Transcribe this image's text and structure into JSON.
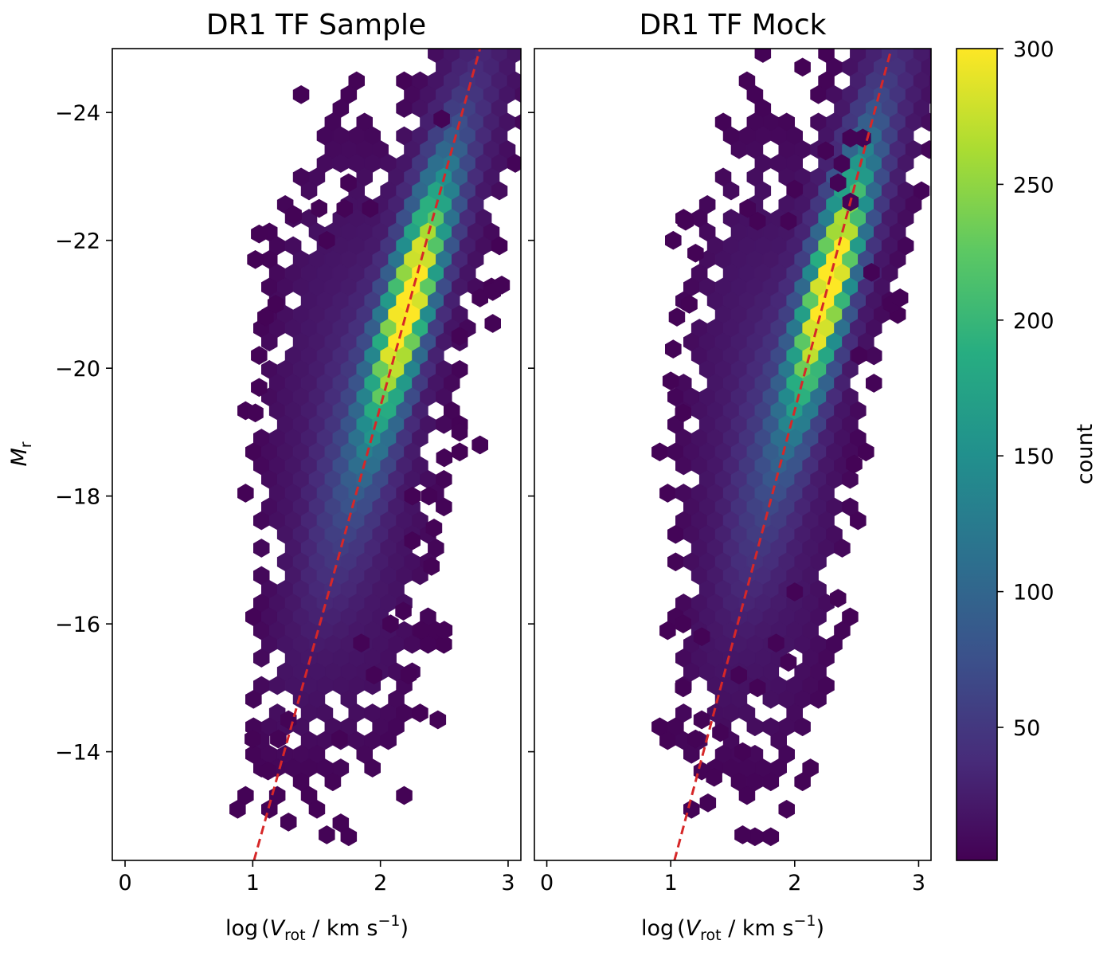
{
  "chart_data": [
    {
      "type": "hexbin",
      "title": "DR1 TF Sample",
      "xlabel_main": "log",
      "xlabel_var": "V",
      "xlabel_sub": "rot",
      "xlabel_unit": " / km s",
      "xlabel_exp": "−1",
      "ylabel_main": "M",
      "ylabel_sub": "r",
      "xlim": [
        -0.1,
        3.1
      ],
      "ylim": [
        -12.3,
        -25.0
      ],
      "xticks": [
        0,
        1,
        2,
        3
      ],
      "yticks": [
        -24,
        -22,
        -20,
        -18,
        -16,
        -14
      ],
      "xtick_labels": [
        "0",
        "1",
        "2",
        "3"
      ],
      "ytick_labels": [
        "−24",
        "−22",
        "−20",
        "−18",
        "−16",
        "−14"
      ],
      "fit_line": {
        "points": [
          [
            1.01,
            -12.3
          ],
          [
            2.78,
            -25.0
          ]
        ],
        "color": "#d62728",
        "style": "dashed"
      },
      "density_ridge": {
        "peak": [
          2.22,
          -21.0
        ],
        "slope": 5.4,
        "peak_count": 300
      },
      "outliers": [
        [
          2.48,
          -23.9
        ],
        [
          1.75,
          -22.9
        ],
        [
          1.32,
          -22.4
        ],
        [
          1.52,
          -22.5
        ],
        [
          1.72,
          -22.5
        ],
        [
          1.92,
          -22.5
        ],
        [
          1.05,
          -22.1
        ],
        [
          1.58,
          -22.0
        ],
        [
          1.02,
          -21.7
        ],
        [
          2.78,
          -21.1
        ],
        [
          2.88,
          -21.2
        ],
        [
          2.95,
          -21.3
        ],
        [
          2.88,
          -20.7
        ],
        [
          2.62,
          -20.5
        ],
        [
          1.1,
          -20.8
        ],
        [
          1.18,
          -21.0
        ],
        [
          1.05,
          -20.2
        ],
        [
          1.05,
          -19.7
        ],
        [
          1.02,
          -19.3
        ],
        [
          2.62,
          -19.0
        ],
        [
          2.78,
          -18.8
        ],
        [
          2.5,
          -18.6
        ],
        [
          2.38,
          -18.0
        ],
        [
          2.25,
          -18.0
        ],
        [
          2.42,
          -17.5
        ],
        [
          2.25,
          -17.3
        ],
        [
          2.4,
          -16.9
        ],
        [
          2.18,
          -16.2
        ],
        [
          1.85,
          -15.7
        ],
        [
          2.08,
          -16.0
        ],
        [
          2.32,
          -15.9
        ],
        [
          2.5,
          -15.9
        ],
        [
          2.22,
          -15.2
        ],
        [
          1.95,
          -15.2
        ],
        [
          2.45,
          -14.5
        ],
        [
          1.28,
          -14.5
        ],
        [
          1.68,
          -14.2
        ],
        [
          1.0,
          -14.2
        ],
        [
          1.12,
          -13.7
        ],
        [
          1.28,
          -12.9
        ],
        [
          1.58,
          -12.7
        ],
        [
          1.2,
          -14.2
        ]
      ]
    },
    {
      "type": "hexbin",
      "title": "DR1 TF Mock",
      "xlabel_main": "log",
      "xlabel_var": "V",
      "xlabel_sub": "rot",
      "xlabel_unit": " / km s",
      "xlabel_exp": "−1",
      "xlim": [
        -0.1,
        3.1
      ],
      "ylim": [
        -12.3,
        -25.0
      ],
      "xticks": [
        0,
        1,
        2,
        3
      ],
      "xtick_labels": [
        "0",
        "1",
        "2",
        "3"
      ],
      "fit_line": {
        "points": [
          [
            1.03,
            -12.3
          ],
          [
            2.78,
            -25.0
          ]
        ],
        "color": "#d62728",
        "style": "dashed"
      },
      "density_ridge": {
        "peak": [
          2.28,
          -21.3
        ],
        "slope": 5.4,
        "peak_count": 300
      },
      "outliers": [
        [
          2.55,
          -23.6
        ],
        [
          2.45,
          -23.6
        ],
        [
          2.25,
          -23.4
        ],
        [
          2.38,
          -23.2
        ],
        [
          2.35,
          -22.9
        ],
        [
          2.0,
          -22.8
        ],
        [
          2.45,
          -22.6
        ],
        [
          1.95,
          -22.3
        ],
        [
          1.7,
          -22.3
        ],
        [
          1.62,
          -22.5
        ],
        [
          1.12,
          -22.3
        ],
        [
          1.02,
          -22.0
        ],
        [
          1.2,
          -21.8
        ],
        [
          2.62,
          -21.5
        ],
        [
          2.78,
          -21.0
        ],
        [
          2.85,
          -21.1
        ],
        [
          1.05,
          -20.8
        ],
        [
          1.15,
          -21.0
        ],
        [
          1.02,
          -20.3
        ],
        [
          1.0,
          -19.8
        ],
        [
          1.1,
          -19.3
        ],
        [
          2.52,
          -20.2
        ],
        [
          2.48,
          -18.5
        ],
        [
          2.0,
          -16.5
        ],
        [
          2.35,
          -16.4
        ],
        [
          1.1,
          -16.0
        ],
        [
          1.25,
          -15.8
        ],
        [
          1.55,
          -15.2
        ],
        [
          1.7,
          -15.0
        ],
        [
          1.1,
          -15.0
        ],
        [
          1.25,
          -14.5
        ],
        [
          1.4,
          -14.3
        ],
        [
          1.2,
          -14.2
        ],
        [
          1.58,
          -14.0
        ],
        [
          1.25,
          -13.7
        ],
        [
          1.35,
          -13.6
        ],
        [
          1.3,
          -13.2
        ],
        [
          1.58,
          -12.7
        ],
        [
          1.85,
          -15.7
        ],
        [
          1.95,
          -15.4
        ]
      ]
    }
  ],
  "colorbar": {
    "label": "count",
    "min": 1,
    "max": 300,
    "ticks": [
      50,
      100,
      150,
      200,
      250,
      300
    ],
    "tick_labels": [
      "50",
      "100",
      "150",
      "200",
      "250",
      "300"
    ],
    "colormap": "viridis"
  }
}
